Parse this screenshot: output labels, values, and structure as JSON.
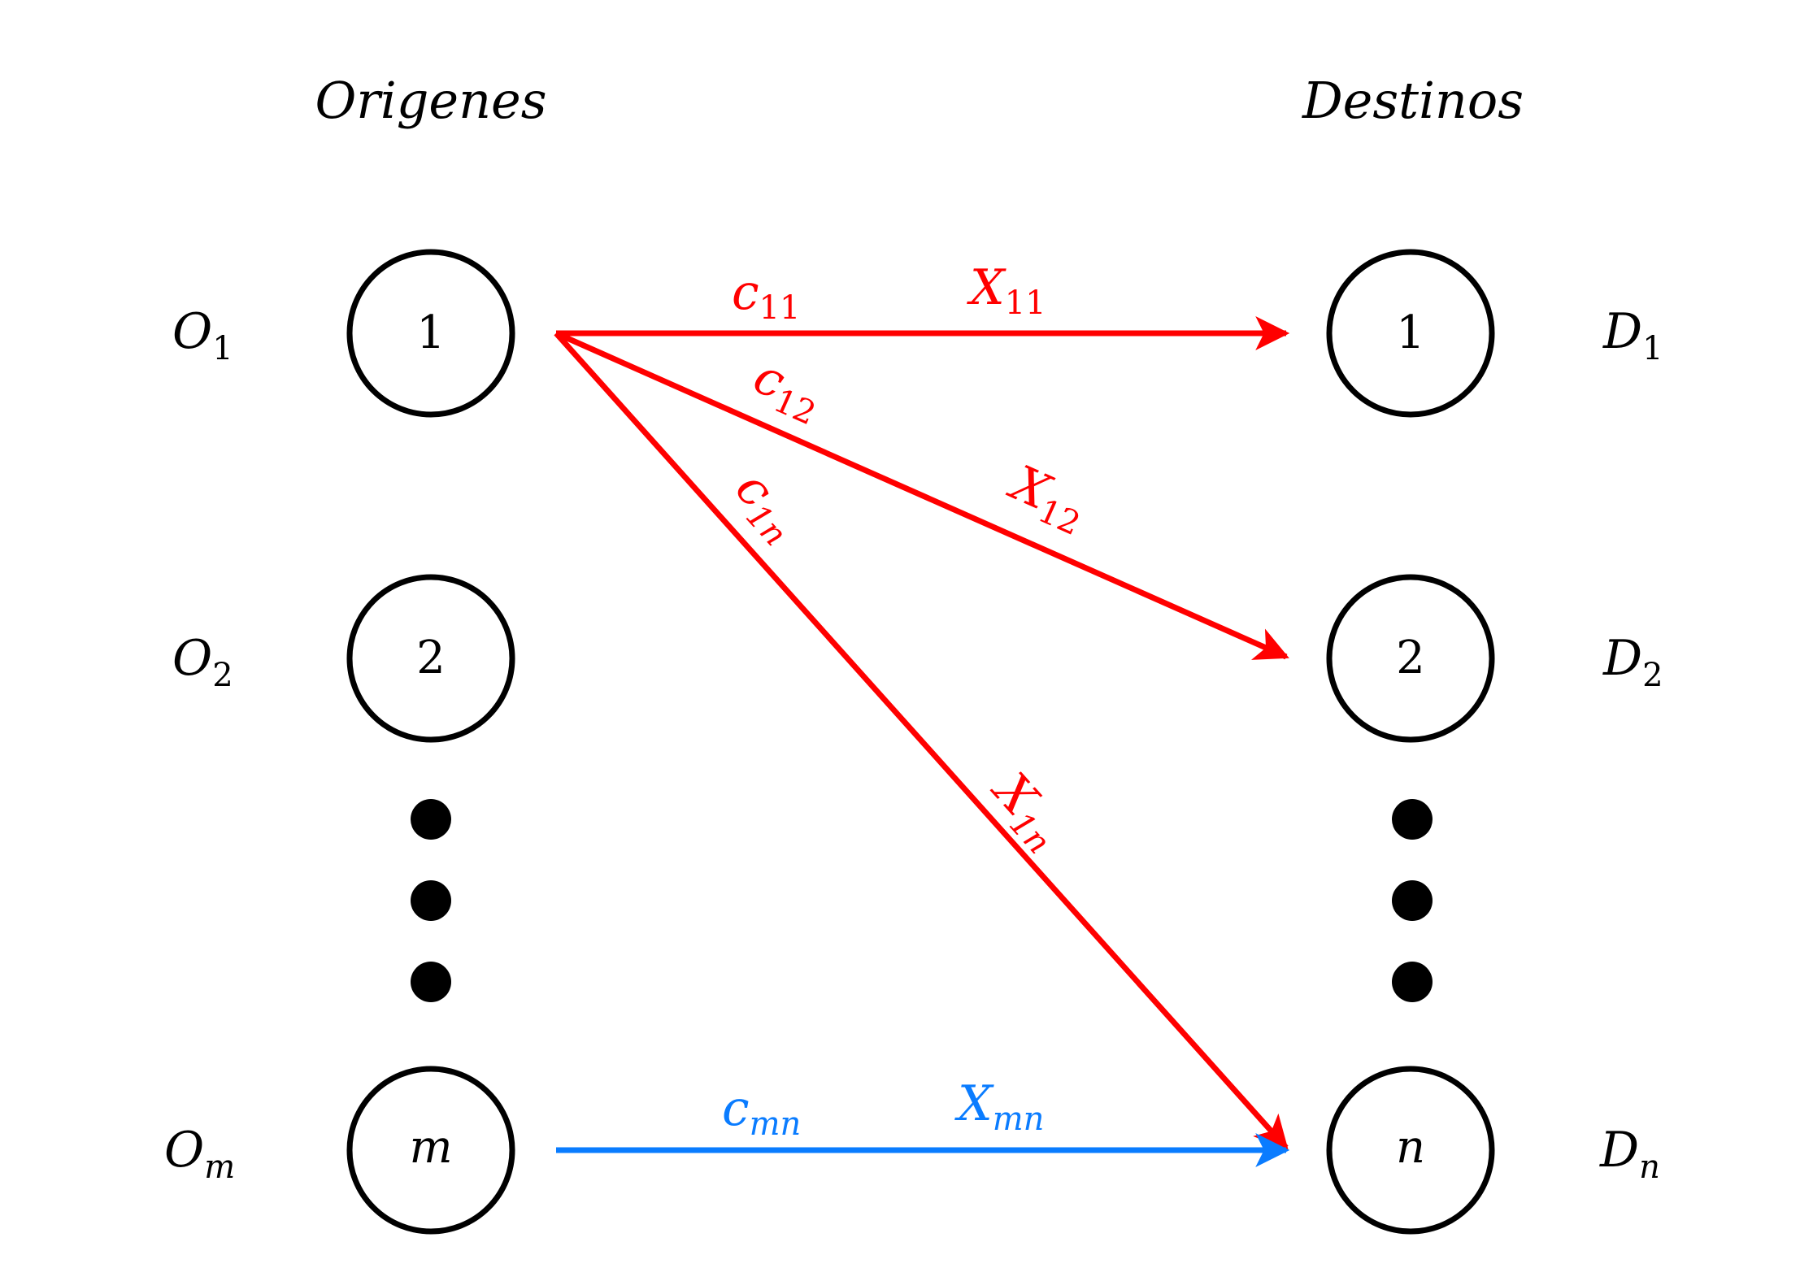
{
  "headers": {
    "origins": "Origenes",
    "destinations": "Destinos"
  },
  "origins": [
    {
      "node": "1",
      "label": "O",
      "sub": "1"
    },
    {
      "node": "2",
      "label": "O",
      "sub": "2"
    },
    {
      "node": "m",
      "label": "O",
      "sub": "m"
    }
  ],
  "destinations": [
    {
      "node": "1",
      "label": "D",
      "sub": "1"
    },
    {
      "node": "2",
      "label": "D",
      "sub": "2"
    },
    {
      "node": "n",
      "label": "D",
      "sub": "n"
    }
  ],
  "edges": [
    {
      "from": "1",
      "to": "1",
      "cost": "c",
      "cost_sub": "11",
      "flow": "X",
      "flow_sub": "11",
      "color": "#ff0000"
    },
    {
      "from": "1",
      "to": "2",
      "cost": "c",
      "cost_sub": "12",
      "flow": "X",
      "flow_sub": "12",
      "color": "#ff0000"
    },
    {
      "from": "1",
      "to": "n",
      "cost": "c",
      "cost_sub": "1n",
      "flow": "X",
      "flow_sub": "1n",
      "color": "#ff0000"
    },
    {
      "from": "m",
      "to": "n",
      "cost": "c",
      "cost_sub": "mn",
      "flow": "X",
      "flow_sub": "mn",
      "color": "#0a7cff"
    }
  ],
  "colors": {
    "node_stroke": "#000000",
    "red": "#ff0000",
    "blue": "#0a7cff"
  }
}
